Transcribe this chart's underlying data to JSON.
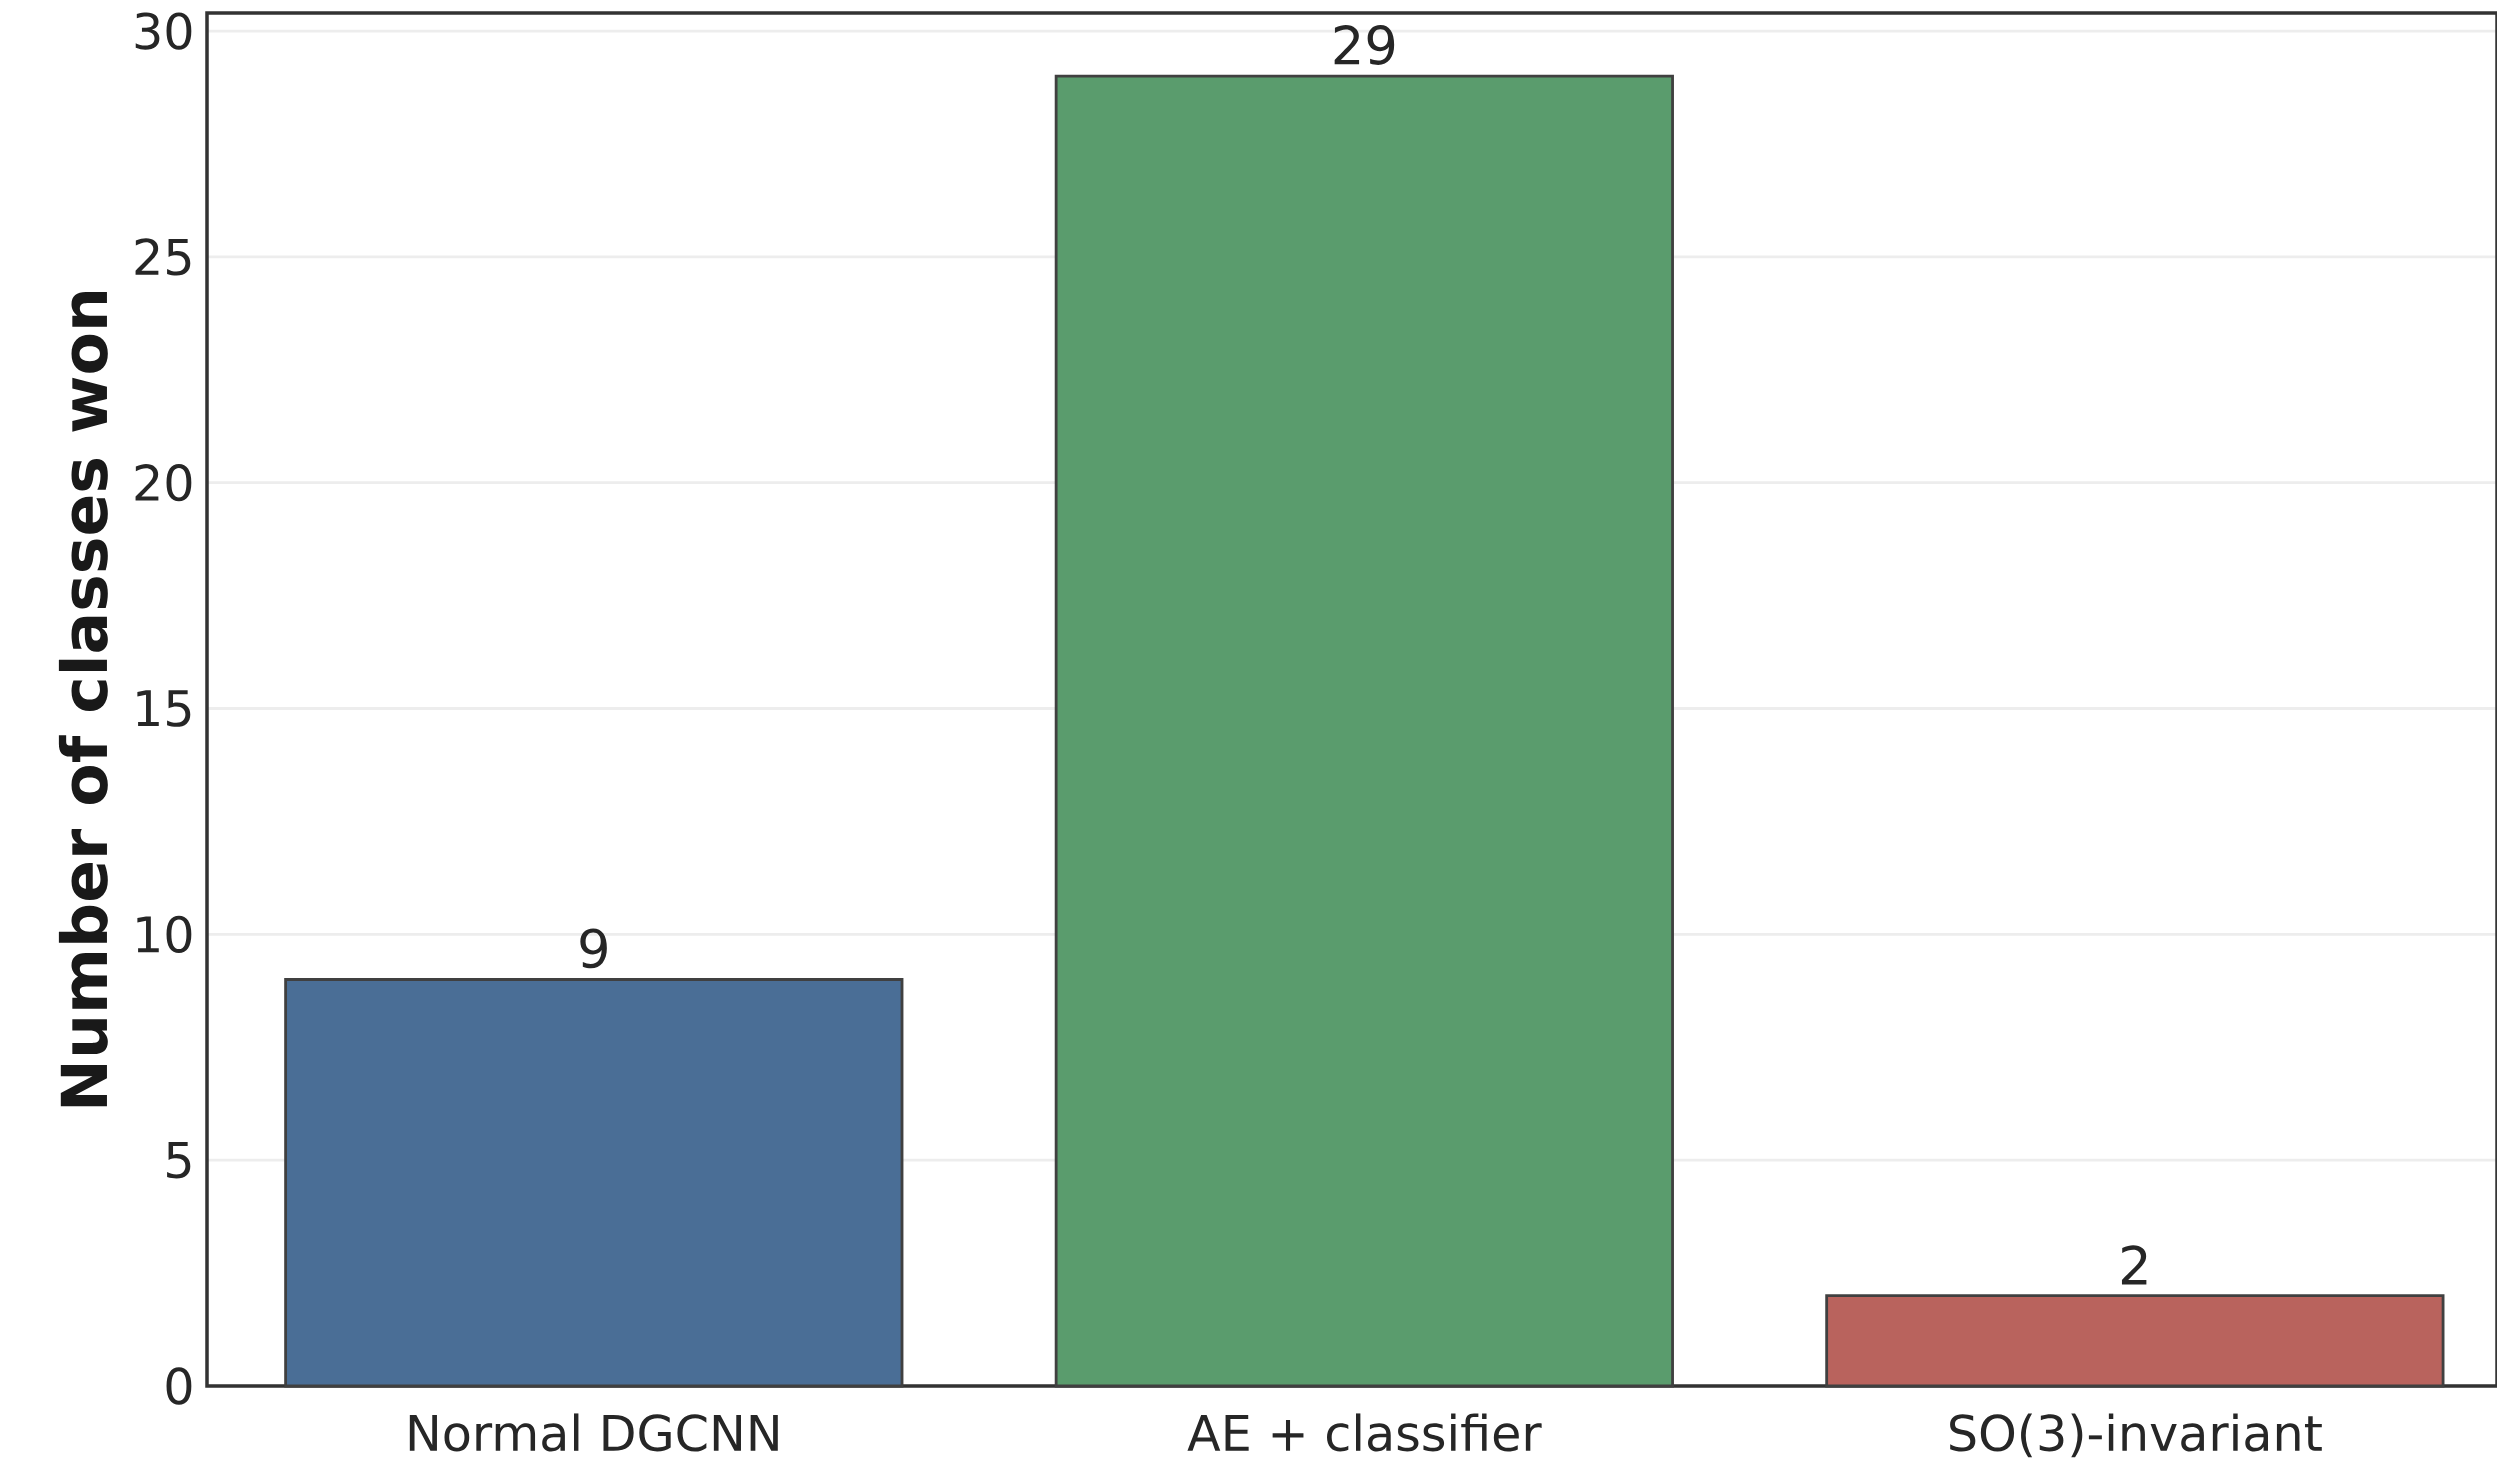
{
  "chart_data": {
    "type": "bar",
    "ylabel": "Number of classes won",
    "categories": [
      "Normal DGCNN",
      "AE + classifier",
      "SO(3)-invariant"
    ],
    "values": [
      9,
      29,
      2
    ],
    "colors": [
      "#4a6e96",
      "#5a9c6d",
      "#b9635d"
    ],
    "ylim": [
      0,
      30.4
    ],
    "yticks": [
      0,
      5,
      10,
      15,
      20,
      25,
      30
    ],
    "grid": "y",
    "data_labels": true
  }
}
